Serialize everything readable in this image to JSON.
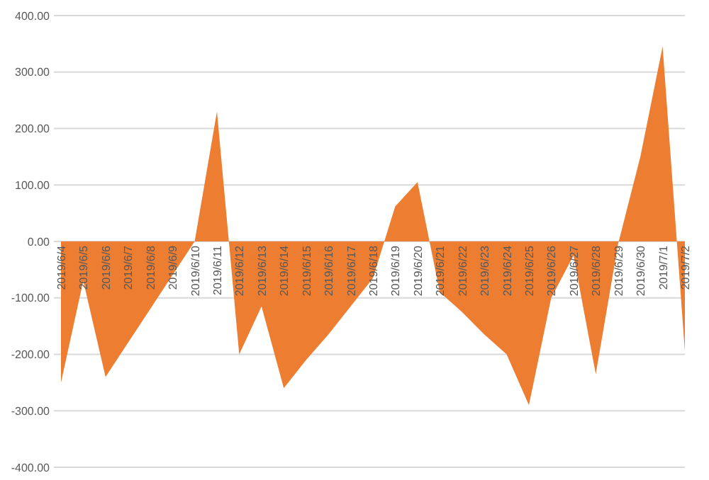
{
  "chart_data": {
    "type": "area",
    "categories": [
      "2019/6/4",
      "2019/6/5",
      "2019/6/6",
      "2019/6/7",
      "2019/6/8",
      "2019/6/9",
      "2019/6/10",
      "2019/6/11",
      "2019/6/12",
      "2019/6/13",
      "2019/6/14",
      "2019/6/15",
      "2019/6/16",
      "2019/6/17",
      "2019/6/18",
      "2019/6/19",
      "2019/6/20",
      "2019/6/21",
      "2019/6/22",
      "2019/6/23",
      "2019/6/24",
      "2019/6/25",
      "2019/6/26",
      "2019/6/27",
      "2019/6/28",
      "2019/6/29",
      "2019/6/30",
      "2019/7/1",
      "2019/7/2"
    ],
    "series": [
      {
        "color": "#ed7d31",
        "values": [
          -250,
          -70,
          -240,
          -180,
          -120,
          -60,
          0,
          230,
          -200,
          -115,
          -260,
          -210,
          -165,
          -115,
          -65,
          62,
          105,
          -90,
          -125,
          -165,
          -200,
          -290,
          -100,
          -25,
          -235,
          -5,
          150,
          345,
          -195
        ]
      }
    ],
    "ylim": [
      -400,
      400
    ],
    "yticks": [
      {
        "value": -400,
        "label": "-400.00"
      },
      {
        "value": -300,
        "label": "-300.00"
      },
      {
        "value": -200,
        "label": "-200.00"
      },
      {
        "value": -100,
        "label": "-100.00"
      },
      {
        "value": 0,
        "label": "0.00"
      },
      {
        "value": 100,
        "label": "100.00"
      },
      {
        "value": 200,
        "label": "200.00"
      },
      {
        "value": 300,
        "label": "300.00"
      },
      {
        "value": 400,
        "label": "400.00"
      }
    ],
    "grid": "y"
  }
}
